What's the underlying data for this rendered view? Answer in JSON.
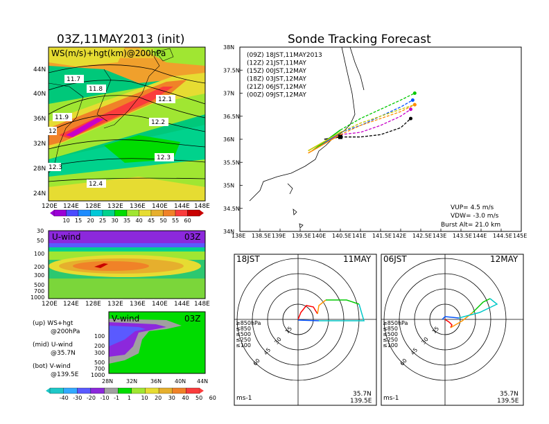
{
  "colors": {
    "wind_scale": [
      "#9b00d6",
      "#4b4bff",
      "#1e8cff",
      "#00c8d7",
      "#00d28c",
      "#00dc00",
      "#a0e632",
      "#e6dc32",
      "#e6af2d",
      "#f08228",
      "#fa3c3c",
      "#c80000"
    ],
    "vwind_scale": [
      "#1ec8c8",
      "#32aaff",
      "#5a5aff",
      "#8c28dc",
      "#a0a0a0",
      "#00dc00",
      "#a0e632",
      "#e6dc32",
      "#e6af2d",
      "#f08228",
      "#fa3c3c"
    ],
    "runs": {
      "00Z": "#000000",
      "12Z": "#c800c8",
      "15Z": "#0050ff",
      "18Z": "#00c800",
      "21Z": "#c8c800",
      "00Z_next": "#ff8c00"
    },
    "hodo_layers": [
      "#ff0000",
      "#ff9600",
      "#00c800",
      "#00c8c8",
      "#0050ff"
    ]
  },
  "left": {
    "title": "03Z,11MAY2013 (init)",
    "map_label": "WS(m/s)+hgt(km)@200hPa",
    "lat_labels": [
      "44N",
      "40N",
      "36N",
      "32N",
      "28N",
      "24N"
    ],
    "lon_labels": [
      "120E",
      "124E",
      "128E",
      "132E",
      "136E",
      "140E",
      "144E",
      "148E"
    ],
    "contour_labels": [
      "11.7",
      "11.8",
      "12.1",
      "11.9",
      "12.2",
      "12",
      "12.3",
      "12.3",
      "12.4"
    ],
    "colorbar_labels": [
      "10",
      "15",
      "20",
      "25",
      "30",
      "35",
      "40",
      "45",
      "50",
      "55",
      "60"
    ],
    "uwind": {
      "label": "U-wind",
      "time": "03Z",
      "levels": [
        "30",
        "50",
        "100",
        "200",
        "300",
        "500",
        "700",
        "1000"
      ],
      "lon_labels": [
        "120E",
        "124E",
        "128E",
        "132E",
        "136E",
        "140E",
        "144E",
        "148E"
      ]
    },
    "vwind": {
      "label": "V-wind",
      "time": "03Z",
      "levels": [
        "100",
        "200",
        "300",
        "500",
        "700",
        "1000"
      ],
      "lat_labels": [
        "28N",
        "32N",
        "36N",
        "40N",
        "44N"
      ]
    },
    "legend": [
      {
        "line1": "(up) WS+hgt",
        "line2": "@200hPa"
      },
      {
        "line1": "(mid) U-wind",
        "line2": "@35.7N"
      },
      {
        "line1": "(bot) V-wind",
        "line2": "@139.5E"
      }
    ],
    "v_colorbar_labels": [
      "-40",
      "-30",
      "-20",
      "-10",
      "-1",
      "1",
      "10",
      "20",
      "30",
      "40",
      "50",
      "60"
    ]
  },
  "right": {
    "title": "Sonde Tracking Forecast",
    "lat_labels": [
      "38N",
      "37.5N",
      "37N",
      "36.5N",
      "36N",
      "35.5N",
      "35N",
      "34.5N",
      "34N"
    ],
    "lon_labels": [
      "138E",
      "138.5E",
      "139E",
      "139.5E",
      "140E",
      "140.5E",
      "141E",
      "141.5E",
      "142E",
      "142.5E",
      "143E",
      "143.5E",
      "144E",
      "144.5E",
      "145E"
    ],
    "runs": [
      {
        "label": "(09Z)  18JST,11MAY2013",
        "color": "#000000"
      },
      {
        "label": "(12Z)  21JST,11MAY",
        "color": "#c800c8"
      },
      {
        "label": "(15Z)  00JST,12MAY",
        "color": "#0050ff"
      },
      {
        "label": "(18Z)  03JST,12MAY",
        "color": "#00c800"
      },
      {
        "label": "(21Z)  06JST,12MAY",
        "color": "#c8c800"
      },
      {
        "label": "(00Z)  09JST,12MAY",
        "color": "#ff8c00"
      }
    ],
    "params": [
      "VUP=  4.5  m/s",
      "VDW=  -3.0  m/s",
      "Burst Alt=  21.0  km"
    ]
  },
  "hodographs": [
    {
      "left_label": "18JST",
      "right_label": "11MAY",
      "bottom_right_1": "35.7N",
      "bottom_right_2": "139.5E",
      "unit": "ms-1"
    },
    {
      "left_label": "06JST",
      "right_label": "12MAY",
      "bottom_right_1": "35.7N",
      "bottom_right_2": "139.5E",
      "unit": "ms-1"
    }
  ],
  "hodo_layers": [
    "≥850hPa",
    "≤850",
    "≤500",
    "≤250",
    "≤100"
  ],
  "hodo_ring_labels": [
    "15",
    "30",
    "45",
    "60"
  ],
  "chart_data": {
    "type": "line",
    "title": "Sonde Tracking Forecast",
    "x_range": [
      138,
      145
    ],
    "y_range": [
      34,
      38
    ],
    "launch": {
      "lon": 140.5,
      "lat": 36.05
    },
    "series": [
      {
        "name": "(09Z) 18JST,11MAY2013",
        "points": [
          [
            140.1,
            36.0
          ],
          [
            140.5,
            36.05
          ],
          [
            141.0,
            36.05
          ],
          [
            141.5,
            36.1
          ],
          [
            142.0,
            36.25
          ],
          [
            142.25,
            36.45
          ]
        ]
      },
      {
        "name": "(12Z) 21JST,11MAY",
        "points": [
          [
            140.0,
            35.9
          ],
          [
            140.5,
            36.1
          ],
          [
            141.0,
            36.15
          ],
          [
            141.5,
            36.3
          ],
          [
            142.0,
            36.5
          ],
          [
            142.25,
            36.65
          ]
        ]
      },
      {
        "name": "(15Z) 00JST,12MAY",
        "points": [
          [
            139.9,
            35.8
          ],
          [
            140.5,
            36.15
          ],
          [
            141.0,
            36.3
          ],
          [
            141.5,
            36.5
          ],
          [
            142.0,
            36.7
          ],
          [
            142.3,
            36.85
          ]
        ]
      },
      {
        "name": "(18Z) 03JST,12MAY",
        "points": [
          [
            139.8,
            35.75
          ],
          [
            140.5,
            36.2
          ],
          [
            141.0,
            36.45
          ],
          [
            141.5,
            36.65
          ],
          [
            142.0,
            36.85
          ],
          [
            142.35,
            37.0
          ]
        ]
      },
      {
        "name": "(21Z) 06JST,12MAY",
        "points": [
          [
            139.7,
            35.75
          ],
          [
            140.5,
            36.15
          ],
          [
            141.0,
            36.35
          ],
          [
            141.5,
            36.5
          ],
          [
            142.0,
            36.65
          ],
          [
            142.35,
            36.75
          ]
        ]
      },
      {
        "name": "(00Z) 09JST,12MAY",
        "points": [
          [
            139.7,
            35.7
          ],
          [
            140.5,
            36.1
          ],
          [
            141.0,
            36.3
          ],
          [
            141.5,
            36.45
          ],
          [
            142.0,
            36.6
          ],
          [
            142.35,
            36.75
          ]
        ]
      }
    ]
  }
}
